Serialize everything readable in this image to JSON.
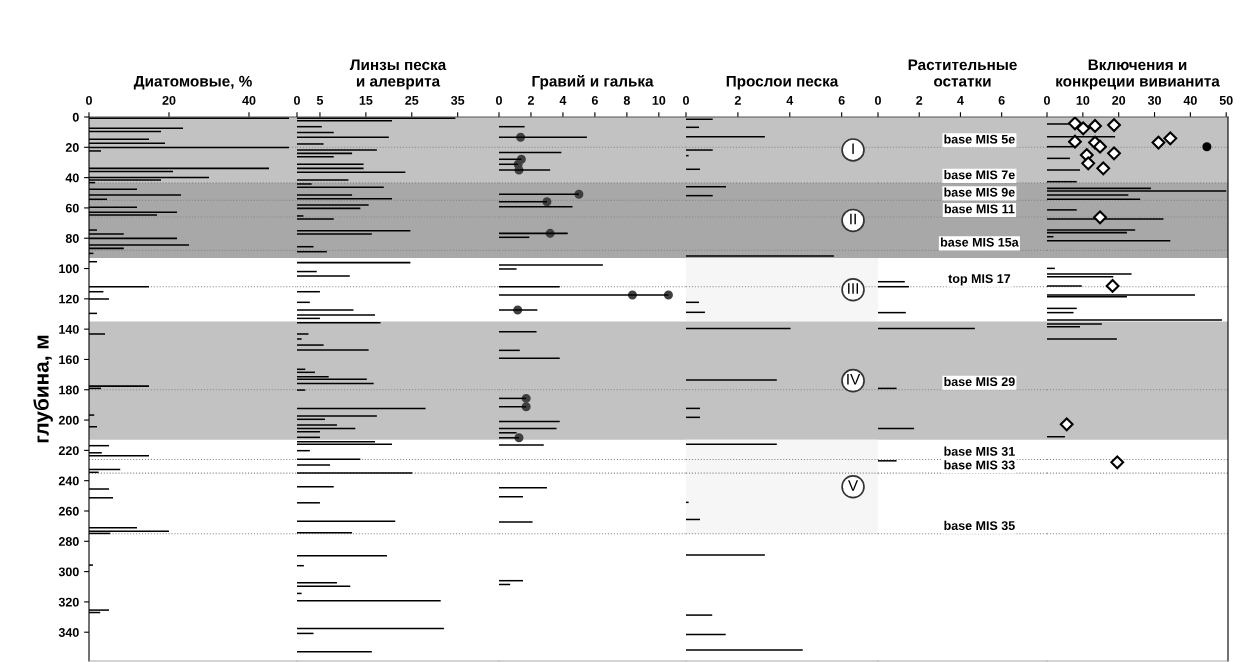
{
  "chart_data": [
    {
      "type": "bar",
      "orientation": "horizontal",
      "title": "Диатомовые, %",
      "ylabel": "глубина, м",
      "xlim": [
        0,
        52
      ],
      "xticks": [
        0,
        20,
        40
      ],
      "ylim": [
        359,
        0
      ],
      "yticks": [
        0,
        20,
        40,
        60,
        80,
        100,
        120,
        140,
        160,
        180,
        200,
        220,
        240,
        260,
        280,
        300,
        320,
        340
      ],
      "grid": false,
      "series": [
        {
          "color": "#000000",
          "x": [
            0.9,
            7.5,
            9.5,
            14.7,
            17.4,
            20.2,
            22.4,
            33.9,
            36,
            40,
            41.6,
            43.3,
            47.7,
            51.5,
            54.3,
            59.6,
            62.9,
            64.7,
            74.6,
            77.2,
            80.1,
            84.5,
            86.7,
            90,
            95.5,
            112,
            115.3,
            120.1,
            129.6,
            143.2,
            177.6,
            179.1,
            196.7,
            204.4,
            216.9,
            221.6,
            223.5,
            232.6,
            234.5,
            245.5,
            251.3,
            271.1,
            273.3,
            274.8,
            295.7,
            325.4,
            327
          ],
          "values": [
            50,
            23.5,
            18,
            15,
            19,
            50,
            3,
            45,
            21,
            30,
            18,
            1.5,
            12,
            23,
            4.5,
            12,
            22,
            17,
            2,
            8.7,
            22,
            25,
            8.7,
            1.1,
            2,
            15,
            3.6,
            5,
            2,
            4,
            15,
            3,
            1.3,
            2,
            5,
            3.2,
            15,
            7.8,
            2.4,
            5,
            6,
            12,
            20,
            5.3,
            1,
            5,
            2.8
          ]
        }
      ],
      "bands": [
        {
          "axis": "y",
          "from": 0,
          "to": 43.5,
          "color": "#c2c2c2"
        },
        {
          "axis": "y",
          "from": 43.5,
          "to": 93,
          "color": "#a8a8a8"
        },
        {
          "axis": "y",
          "from": 135,
          "to": 213,
          "color": "#c2c2c2"
        }
      ],
      "ref_lines": [
        {
          "axis": "y",
          "value": 20
        },
        {
          "axis": "y",
          "value": 43.5
        },
        {
          "axis": "y",
          "value": 55
        },
        {
          "axis": "y",
          "value": 66
        },
        {
          "axis": "y",
          "value": 88
        },
        {
          "axis": "y",
          "value": 112
        },
        {
          "axis": "y",
          "value": 180
        },
        {
          "axis": "y",
          "value": 226
        },
        {
          "axis": "y",
          "value": 235
        },
        {
          "axis": "y",
          "value": 275
        }
      ]
    },
    {
      "type": "bar",
      "orientation": "horizontal",
      "title": "Линзы песка\nи алеврита",
      "tick_labels": "x",
      "xlim": [
        0,
        44
      ],
      "xticks": [
        0,
        5,
        15,
        25,
        35
      ],
      "ylim": [
        359,
        0
      ],
      "grid": false,
      "series": [
        {
          "color": "#000000",
          "x": [
            0.9,
            2.4,
            6.4,
            10.3,
            13.4,
            17.8,
            21.8,
            24,
            26.2,
            31.2,
            33.9,
            36.5,
            41.6,
            44.2,
            46.4,
            51.5,
            53.9,
            58.1,
            60.3,
            65.3,
            67.3,
            75,
            77.2,
            85.6,
            88.9,
            96.1,
            102,
            104.9,
            115.3,
            122.3,
            127.4,
            130.7,
            132.9,
            135.8,
            143.2,
            146.5,
            150.5,
            153.8,
            166.5,
            168.5,
            171.4,
            173.1,
            175.8,
            180.2,
            192.3,
            197.3,
            199.5,
            203.3,
            205.5,
            207.7,
            211.4,
            214.3,
            216,
            220.2,
            225.9,
            229.7,
            235,
            244,
            254.6,
            266.7,
            274.4,
            289.5,
            296.1,
            307.4,
            309.6,
            314.4,
            319.2,
            337.5,
            340.8,
            352.9
          ],
          "values": [
            34.5,
            20.7,
            5.4,
            8,
            20,
            5.8,
            17.4,
            12,
            8,
            14.5,
            14.5,
            23.6,
            11.2,
            3.2,
            18.9,
            12,
            20.7,
            15.6,
            13.8,
            1.4,
            8,
            24.7,
            16.3,
            3.6,
            6.5,
            24.7,
            4.3,
            11.5,
            5,
            2.8,
            12.3,
            17,
            5,
            18.2,
            2.5,
            1,
            5.8,
            15.6,
            1.8,
            3.9,
            6.9,
            15.2,
            16.7,
            1.8,
            28,
            17.4,
            6.1,
            8.7,
            12.7,
            5,
            5,
            17,
            20.7,
            2.8,
            13.8,
            7.2,
            25.1,
            8,
            5,
            21.4,
            12,
            19.6,
            1.5,
            8.7,
            11.6,
            1,
            31.3,
            32,
            3.6,
            16.3
          ]
        }
      ],
      "bands": [
        {
          "axis": "y",
          "from": 0,
          "to": 43.5,
          "color": "#c2c2c2"
        },
        {
          "axis": "y",
          "from": 43.5,
          "to": 93,
          "color": "#a8a8a8"
        },
        {
          "axis": "y",
          "from": 135,
          "to": 213,
          "color": "#c2c2c2"
        }
      ],
      "ref_lines": [
        {
          "axis": "y",
          "value": 20
        },
        {
          "axis": "y",
          "value": 43.5
        },
        {
          "axis": "y",
          "value": 55
        },
        {
          "axis": "y",
          "value": 66
        },
        {
          "axis": "y",
          "value": 88
        },
        {
          "axis": "y",
          "value": 112
        },
        {
          "axis": "y",
          "value": 180
        },
        {
          "axis": "y",
          "value": 226
        },
        {
          "axis": "y",
          "value": 235
        },
        {
          "axis": "y",
          "value": 275
        }
      ]
    },
    {
      "type": "bar",
      "orientation": "horizontal",
      "title": "Гравий и галька",
      "tick_labels": "x",
      "xlim": [
        0,
        11.7
      ],
      "xticks": [
        0,
        2,
        4,
        6,
        8,
        10
      ],
      "ylim": [
        359,
        0
      ],
      "grid": false,
      "series": [
        {
          "color": "#000000",
          "x": [
            6.4,
            13.4,
            23.5,
            27.9,
            31.2,
            35,
            51,
            55.9,
            59.2,
            76.8,
            79.4,
            97.7,
            100.3,
            112,
            117.5,
            127.4,
            141.7,
            154,
            159.2,
            185.7,
            191.2,
            201,
            205.5,
            208.4,
            211.7,
            216.5,
            244.6,
            250.6,
            267.3,
            306,
            308.5
          ],
          "values": [
            1.6,
            5.5,
            3.9,
            1.4,
            1.2,
            3.2,
            5,
            3,
            4.6,
            4.3,
            1.9,
            6.5,
            1.1,
            3.8,
            10.6,
            2.4,
            2.35,
            1.3,
            3.8,
            1.7,
            1.7,
            3.8,
            3.6,
            1.1,
            1.25,
            2.8,
            3,
            1.5,
            2.1,
            1.5,
            0.7
          ]
        },
        {
          "type": "scatter",
          "marker": "circle",
          "color": "#404040",
          "x": [
            13.4,
            27.9,
            31.2,
            35,
            51,
            55.9,
            76.8,
            117.5,
            117.5,
            127.4,
            185.7,
            191.2,
            211.7
          ],
          "values": [
            1.35,
            1.4,
            1.2,
            1.25,
            5,
            3,
            3.2,
            8.35,
            10.6,
            1.17,
            1.7,
            1.7,
            1.25
          ]
        }
      ],
      "bands": [
        {
          "axis": "y",
          "from": 0,
          "to": 43.5,
          "color": "#c2c2c2"
        },
        {
          "axis": "y",
          "from": 43.5,
          "to": 93,
          "color": "#a8a8a8"
        },
        {
          "axis": "y",
          "from": 135,
          "to": 213,
          "color": "#c2c2c2"
        }
      ],
      "ref_lines": [
        {
          "axis": "y",
          "value": 20
        },
        {
          "axis": "y",
          "value": 43.5
        },
        {
          "axis": "y",
          "value": 55
        },
        {
          "axis": "y",
          "value": 66
        },
        {
          "axis": "y",
          "value": 88
        },
        {
          "axis": "y",
          "value": 112
        },
        {
          "axis": "y",
          "value": 180
        },
        {
          "axis": "y",
          "value": 226
        },
        {
          "axis": "y",
          "value": 235
        },
        {
          "axis": "y",
          "value": 275
        }
      ]
    },
    {
      "type": "bar",
      "orientation": "horizontal",
      "title": "Прослои песка",
      "tick_labels": "x",
      "xlim": [
        0,
        7.4
      ],
      "xticks": [
        0,
        2,
        4,
        6
      ],
      "ylim": [
        359,
        0
      ],
      "grid": false,
      "series": [
        {
          "color": "#000000",
          "x": [
            1.5,
            6.8,
            13,
            21.8,
            25.5,
            34.5,
            46,
            51.9,
            91.7,
            122.3,
            128.9,
            139.5,
            173.6,
            192.3,
            198.2,
            216,
            254.3,
            265.6,
            289.1,
            328.7,
            341.5,
            351.8
          ],
          "values": [
            1.03,
            0.5,
            3.04,
            1.03,
            0.1,
            0.54,
            1.54,
            1.03,
            5.7,
            0.5,
            0.73,
            4.03,
            3.5,
            0.54,
            0.54,
            3.5,
            0.1,
            0.54,
            3.04,
            1.01,
            1.53,
            4.5
          ]
        }
      ],
      "bands": [
        {
          "axis": "y",
          "from": 0,
          "to": 43.5,
          "label": "I",
          "color": "#c2c2c2"
        },
        {
          "axis": "y",
          "from": 43.5,
          "to": 93,
          "label": "II",
          "color": "#a8a8a8"
        },
        {
          "axis": "y",
          "from": 93,
          "to": 135,
          "label": "III",
          "color": "#f6f6f6"
        },
        {
          "axis": "y",
          "from": 135,
          "to": 213,
          "label": "IV",
          "color": "#c2c2c2"
        },
        {
          "axis": "y",
          "from": 213,
          "to": 275,
          "label": "V",
          "color": "#f6f6f6"
        }
      ],
      "ref_lines": [
        {
          "axis": "y",
          "value": 20
        },
        {
          "axis": "y",
          "value": 43.5
        },
        {
          "axis": "y",
          "value": 55
        },
        {
          "axis": "y",
          "value": 66
        },
        {
          "axis": "y",
          "value": 88
        },
        {
          "axis": "y",
          "value": 112
        },
        {
          "axis": "y",
          "value": 180
        },
        {
          "axis": "y",
          "value": 226
        },
        {
          "axis": "y",
          "value": 235
        },
        {
          "axis": "y",
          "value": 275
        }
      ]
    },
    {
      "type": "bar",
      "orientation": "horizontal",
      "title": "Растительные\nостатки",
      "tick_labels": "x",
      "xlim": [
        0,
        8.2
      ],
      "xticks": [
        0,
        2,
        4,
        6
      ],
      "ylim": [
        359,
        0
      ],
      "grid": false,
      "series": [
        {
          "color": "#000000",
          "x": [
            108.7,
            112,
            129.1,
            139.5,
            179.1,
            205.5,
            226.9
          ],
          "values": [
            1.3,
            1.5,
            1.35,
            4.7,
            0.9,
            1.75,
            0.9
          ]
        }
      ],
      "bands": [
        {
          "axis": "y",
          "from": 0,
          "to": 43.5,
          "color": "#c2c2c2"
        },
        {
          "axis": "y",
          "from": 43.5,
          "to": 93,
          "color": "#a8a8a8"
        },
        {
          "axis": "y",
          "from": 135,
          "to": 213,
          "color": "#c2c2c2"
        }
      ],
      "ref_lines": [
        {
          "axis": "y",
          "value": 20,
          "label": "base MIS 5e"
        },
        {
          "axis": "y",
          "value": 43.5,
          "label": "base MIS 7e"
        },
        {
          "axis": "y",
          "value": 55,
          "label": "base MIS 9e"
        },
        {
          "axis": "y",
          "value": 66,
          "label": "base MIS 11"
        },
        {
          "axis": "y",
          "value": 88,
          "label": "base MIS 15a"
        },
        {
          "axis": "y",
          "value": 112,
          "label": "top MIS 17"
        },
        {
          "axis": "y",
          "value": 180,
          "label": "base MIS 29"
        },
        {
          "axis": "y",
          "value": 226,
          "label": "base MIS 31"
        },
        {
          "axis": "y",
          "value": 235,
          "label": "base MIS 33"
        },
        {
          "axis": "y",
          "value": 275,
          "label": "base MIS 35"
        }
      ]
    },
    {
      "type": "bar",
      "orientation": "horizontal",
      "title": "Включения и\nконкреции вивианита",
      "tick_labels": "x",
      "xlim": [
        0,
        50.5
      ],
      "xticks": [
        0,
        10,
        20,
        30,
        40,
        50
      ],
      "ylim": [
        359,
        0
      ],
      "grid": false,
      "series": [
        {
          "color": "#000000",
          "x": [
            4.6,
            13,
            19.6,
            27.3,
            35,
            42.7,
            47.1,
            48.8,
            51.5,
            54.3,
            61.3,
            67.3,
            74.6,
            76.3,
            79,
            81.6,
            99.9,
            103.6,
            105.4,
            111.5,
            117.5,
            118.6,
            126.3,
            129.1,
            134,
            136.6,
            138.4,
            146.5,
            211
          ],
          "values": [
            6.4,
            19,
            7.4,
            6.4,
            9.2,
            8.3,
            29,
            50,
            22.7,
            26,
            8.3,
            32.5,
            24.6,
            22.3,
            1.8,
            34.4,
            2.2,
            23.6,
            18.5,
            9.7,
            41.3,
            22.3,
            8.3,
            7.4,
            48.8,
            15.3,
            9.2,
            19.5,
            5
          ]
        },
        {
          "type": "scatter",
          "marker": "diamond",
          "color": "#000000",
          "x": [
            4.2,
            7.5,
            5.9,
            5.3,
            16.3,
            16.9,
            19.6,
            16.9,
            14.1,
            24,
            25.1,
            30.6,
            33.9,
            66.2,
            111.5,
            202.8,
            227.9
          ],
          "values": [
            7.8,
            10.1,
            13.4,
            18.7,
            7.8,
            13.4,
            14.8,
            31.1,
            34.4,
            18.7,
            11.1,
            11.5,
            15.7,
            14.8,
            18.3,
            5.5,
            19.6
          ]
        },
        {
          "type": "scatter",
          "marker": "circle",
          "color": "#000000",
          "x": [
            19.6
          ],
          "values": [
            44.6
          ]
        }
      ],
      "bands": [
        {
          "axis": "y",
          "from": 0,
          "to": 43.5,
          "color": "#c2c2c2"
        },
        {
          "axis": "y",
          "from": 43.5,
          "to": 93,
          "color": "#a8a8a8"
        },
        {
          "axis": "y",
          "from": 135,
          "to": 213,
          "color": "#c2c2c2"
        }
      ],
      "ref_lines": [
        {
          "axis": "y",
          "value": 20
        },
        {
          "axis": "y",
          "value": 43.5
        },
        {
          "axis": "y",
          "value": 55
        },
        {
          "axis": "y",
          "value": 66
        },
        {
          "axis": "y",
          "value": 88
        },
        {
          "axis": "y",
          "value": 112
        },
        {
          "axis": "y",
          "value": 180
        },
        {
          "axis": "y",
          "value": 226
        },
        {
          "axis": "y",
          "value": 235
        },
        {
          "axis": "y",
          "value": 275
        }
      ]
    }
  ]
}
